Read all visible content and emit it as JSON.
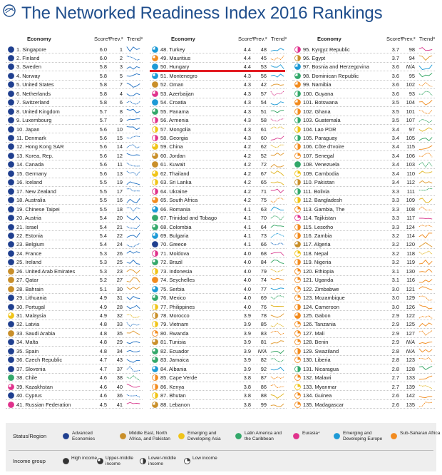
{
  "title": "The Networked Readiness Index 2016 Rankings",
  "colors": {
    "title": "#1f4e8c",
    "highlight_line": "#e31d23",
    "regions": {
      "adv": "#1f3f8f",
      "mena": "#c98f2a",
      "asia": "#f0c419",
      "lac": "#33a86a",
      "eur": "#e0328c",
      "europe": "#1d9ad6",
      "ssa": "#f28b1f"
    },
    "trend": {
      "adv": "#1f6fc2",
      "mena": "#e0972a",
      "asia": "#e0b21a",
      "lac": "#2fa35f",
      "eur": "#d83a8d",
      "europe": "#1d9ad6",
      "ssa": "#f08a1c"
    }
  },
  "headers": {
    "economy": "Economy",
    "score": "Score¹",
    "prev": "Prev.²",
    "trend": "Trend³"
  },
  "highlight_rank": 50,
  "columns": [
    [
      [
        "1. Singapore",
        "6.0",
        "1",
        "adv",
        "H"
      ],
      [
        "2. Finland",
        "6.0",
        "2",
        "adv",
        "H"
      ],
      [
        "3. Sweden",
        "5.8",
        "3",
        "adv",
        "H"
      ],
      [
        "4. Norway",
        "5.8",
        "5",
        "adv",
        "H"
      ],
      [
        "5. United States",
        "5.8",
        "7",
        "adv",
        "H"
      ],
      [
        "6. Netherlands",
        "5.8",
        "4",
        "adv",
        "H"
      ],
      [
        "7. Switzerland",
        "5.8",
        "6",
        "adv",
        "H"
      ],
      [
        "8. United Kingdom",
        "5.7",
        "8",
        "adv",
        "H"
      ],
      [
        "9. Luxembourg",
        "5.7",
        "9",
        "adv",
        "H"
      ],
      [
        "10. Japan",
        "5.6",
        "10",
        "adv",
        "H"
      ],
      [
        "11. Denmark",
        "5.6",
        "15",
        "adv",
        "H"
      ],
      [
        "12. Hong Kong SAR",
        "5.6",
        "14",
        "adv",
        "H"
      ],
      [
        "13. Korea, Rep.",
        "5.6",
        "12",
        "adv",
        "H"
      ],
      [
        "14. Canada",
        "5.6",
        "11",
        "adv",
        "H"
      ],
      [
        "15. Germany",
        "5.6",
        "13",
        "adv",
        "H"
      ],
      [
        "16. Iceland",
        "5.5",
        "19",
        "adv",
        "H"
      ],
      [
        "17. New Zealand",
        "5.5",
        "17",
        "adv",
        "H"
      ],
      [
        "18. Australia",
        "5.5",
        "16",
        "adv",
        "H"
      ],
      [
        "19. Chinese Taipei",
        "5.5",
        "18",
        "adv",
        "H"
      ],
      [
        "20. Austria",
        "5.4",
        "20",
        "adv",
        "H"
      ],
      [
        "21. Israel",
        "5.4",
        "21",
        "adv",
        "H"
      ],
      [
        "22. Estonia",
        "5.4",
        "22",
        "adv",
        "H"
      ],
      [
        "23. Belgium",
        "5.4",
        "24",
        "adv",
        "H"
      ],
      [
        "24. France",
        "5.3",
        "26",
        "adv",
        "H"
      ],
      [
        "25. Ireland",
        "5.3",
        "25",
        "adv",
        "H"
      ],
      [
        "26. United Arab Emirates",
        "5.3",
        "23",
        "mena",
        "H"
      ],
      [
        "27. Qatar",
        "5.2",
        "27",
        "mena",
        "H"
      ],
      [
        "28. Bahrain",
        "5.1",
        "30",
        "mena",
        "H"
      ],
      [
        "29. Lithuania",
        "4.9",
        "31",
        "adv",
        "H"
      ],
      [
        "30. Portugal",
        "4.9",
        "28",
        "adv",
        "H"
      ],
      [
        "31. Malaysia",
        "4.9",
        "32",
        "asia",
        "UM"
      ],
      [
        "32. Latvia",
        "4.8",
        "33",
        "adv",
        "H"
      ],
      [
        "33. Saudi Arabia",
        "4.8",
        "35",
        "mena",
        "H"
      ],
      [
        "34. Malta",
        "4.8",
        "29",
        "adv",
        "H"
      ],
      [
        "35. Spain",
        "4.8",
        "34",
        "adv",
        "H"
      ],
      [
        "36. Czech Republic",
        "4.7",
        "43",
        "adv",
        "H"
      ],
      [
        "37. Slovenia",
        "4.7",
        "37",
        "adv",
        "H"
      ],
      [
        "38. Chile",
        "4.6",
        "38",
        "lac",
        "H"
      ],
      [
        "39. Kazakhstan",
        "4.6",
        "40",
        "eur",
        "UM"
      ],
      [
        "40. Cyprus",
        "4.6",
        "36",
        "adv",
        "H"
      ],
      [
        "41. Russian Federation",
        "4.5",
        "41",
        "eur",
        "H"
      ]
    ],
    [
      [
        "48. Turkey",
        "4.4",
        "48",
        "europe",
        "UM"
      ],
      [
        "49. Mauritius",
        "4.4",
        "45",
        "ssa",
        "UM"
      ],
      [
        "50. Hungary",
        "4.4",
        "53",
        "europe",
        "H"
      ],
      [
        "51. Montenegro",
        "4.3",
        "56",
        "europe",
        "UM"
      ],
      [
        "52. Oman",
        "4.3",
        "42",
        "mena",
        "H"
      ],
      [
        "53. Azerbaijan",
        "4.3",
        "57",
        "eur",
        "UM"
      ],
      [
        "54. Croatia",
        "4.3",
        "54",
        "europe",
        "H"
      ],
      [
        "55. Panama",
        "4.3",
        "51",
        "lac",
        "UM"
      ],
      [
        "56. Armenia",
        "4.3",
        "58",
        "eur",
        "LM"
      ],
      [
        "57. Mongolia",
        "4.3",
        "61",
        "asia",
        "LM"
      ],
      [
        "58. Georgia",
        "4.3",
        "60",
        "eur",
        "LM"
      ],
      [
        "59. China",
        "4.2",
        "62",
        "asia",
        "UM"
      ],
      [
        "60. Jordan",
        "4.2",
        "52",
        "mena",
        "UM"
      ],
      [
        "61. Kuwait",
        "4.2",
        "72",
        "mena",
        "H"
      ],
      [
        "62. Thailand",
        "4.2",
        "67",
        "asia",
        "UM"
      ],
      [
        "63. Sri Lanka",
        "4.2",
        "65",
        "asia",
        "LM"
      ],
      [
        "64. Ukraine",
        "4.2",
        "71",
        "eur",
        "LM"
      ],
      [
        "65. South Africa",
        "4.2",
        "75",
        "ssa",
        "UM"
      ],
      [
        "66. Romania",
        "4.1",
        "63",
        "europe",
        "UM"
      ],
      [
        "67. Trinidad and Tobago",
        "4.1",
        "70",
        "lac",
        "H"
      ],
      [
        "68. Colombia",
        "4.1",
        "64",
        "lac",
        "UM"
      ],
      [
        "69. Bulgaria",
        "4.1",
        "73",
        "europe",
        "UM"
      ],
      [
        "70. Greece",
        "4.1",
        "66",
        "adv",
        "H"
      ],
      [
        "71. Moldova",
        "4.0",
        "68",
        "eur",
        "LM"
      ],
      [
        "72. Brazil",
        "4.0",
        "84",
        "lac",
        "UM"
      ],
      [
        "73. Indonesia",
        "4.0",
        "79",
        "asia",
        "LM"
      ],
      [
        "74. Seychelles",
        "4.0",
        "74",
        "ssa",
        "H"
      ],
      [
        "75. Serbia",
        "4.0",
        "77",
        "europe",
        "UM"
      ],
      [
        "76. Mexico",
        "4.0",
        "69",
        "lac",
        "UM"
      ],
      [
        "77. Philippines",
        "4.0",
        "76",
        "asia",
        "LM"
      ],
      [
        "78. Morocco",
        "3.9",
        "78",
        "mena",
        "LM"
      ],
      [
        "79. Vietnam",
        "3.9",
        "85",
        "asia",
        "LM"
      ],
      [
        "80. Rwanda",
        "3.9",
        "83",
        "ssa",
        "L"
      ],
      [
        "81. Tunisia",
        "3.9",
        "81",
        "mena",
        "UM"
      ],
      [
        "82. Ecuador",
        "3.9",
        "N/A",
        "lac",
        "UM"
      ],
      [
        "83. Jamaica",
        "3.9",
        "82",
        "lac",
        "UM"
      ],
      [
        "84. Albania",
        "3.9",
        "92",
        "europe",
        "UM"
      ],
      [
        "85. Cape Verde",
        "3.8",
        "87",
        "ssa",
        "LM"
      ],
      [
        "86. Kenya",
        "3.8",
        "86",
        "ssa",
        "LM"
      ],
      [
        "87. Bhutan",
        "3.8",
        "88",
        "asia",
        "LM"
      ],
      [
        "88. Lebanon",
        "3.8",
        "99",
        "mena",
        "UM"
      ]
    ],
    [
      [
        "95. Kyrgyz Republic",
        "3.7",
        "98",
        "eur",
        "LM"
      ],
      [
        "96. Egypt",
        "3.7",
        "94",
        "mena",
        "LM"
      ],
      [
        "97. Bosnia and Herzegovina",
        "3.6",
        "N/A",
        "europe",
        "UM"
      ],
      [
        "98. Dominican Republic",
        "3.6",
        "95",
        "lac",
        "UM"
      ],
      [
        "99. Namibia",
        "3.6",
        "102",
        "ssa",
        "UM"
      ],
      [
        "100. Guyana",
        "3.6",
        "93",
        "lac",
        "LM"
      ],
      [
        "101. Botswana",
        "3.5",
        "104",
        "ssa",
        "UM"
      ],
      [
        "102. Ghana",
        "3.5",
        "101",
        "ssa",
        "LM"
      ],
      [
        "103. Guatemala",
        "3.5",
        "107",
        "lac",
        "LM"
      ],
      [
        "104. Lao PDR",
        "3.4",
        "97",
        "asia",
        "LM"
      ],
      [
        "105. Paraguay",
        "3.4",
        "105",
        "lac",
        "LM"
      ],
      [
        "106. Côte d'Ivoire",
        "3.4",
        "115",
        "ssa",
        "LM"
      ],
      [
        "107. Senegal",
        "3.4",
        "106",
        "ssa",
        "L"
      ],
      [
        "108. Venezuela",
        "3.4",
        "103",
        "lac",
        "H"
      ],
      [
        "109. Cambodia",
        "3.4",
        "110",
        "asia",
        "L"
      ],
      [
        "110. Pakistan",
        "3.4",
        "112",
        "mena",
        "LM"
      ],
      [
        "111. Bolivia",
        "3.3",
        "111",
        "lac",
        "LM"
      ],
      [
        "112. Bangladesh",
        "3.3",
        "109",
        "asia",
        "LM"
      ],
      [
        "113. Gambia, The",
        "3.3",
        "108",
        "ssa",
        "L"
      ],
      [
        "114. Tajikistan",
        "3.3",
        "117",
        "eur",
        "L"
      ],
      [
        "115. Lesotho",
        "3.3",
        "124",
        "ssa",
        "LM"
      ],
      [
        "116. Zambia",
        "3.2",
        "114",
        "ssa",
        "LM"
      ],
      [
        "117. Algeria",
        "3.2",
        "120",
        "mena",
        "UM"
      ],
      [
        "118. Nepal",
        "3.2",
        "118",
        "asia",
        "L"
      ],
      [
        "119. Nigeria",
        "3.2",
        "119",
        "ssa",
        "LM"
      ],
      [
        "120. Ethiopia",
        "3.1",
        "130",
        "ssa",
        "L"
      ],
      [
        "121. Uganda",
        "3.1",
        "116",
        "ssa",
        "L"
      ],
      [
        "122. Zimbabwe",
        "3.0",
        "121",
        "ssa",
        "L"
      ],
      [
        "123. Mozambique",
        "3.0",
        "129",
        "ssa",
        "L"
      ],
      [
        "124. Cameroon",
        "3.0",
        "126",
        "ssa",
        "LM"
      ],
      [
        "125. Gabon",
        "2.9",
        "122",
        "ssa",
        "UM"
      ],
      [
        "126. Tanzania",
        "2.9",
        "125",
        "ssa",
        "L"
      ],
      [
        "127. Mali",
        "2.9",
        "127",
        "ssa",
        "L"
      ],
      [
        "128. Benin",
        "2.9",
        "N/A",
        "ssa",
        "L"
      ],
      [
        "129. Swaziland",
        "2.8",
        "N/A",
        "ssa",
        "LM"
      ],
      [
        "130. Liberia",
        "2.8",
        "123",
        "ssa",
        "L"
      ],
      [
        "131. Nicaragua",
        "2.8",
        "128",
        "lac",
        "LM"
      ],
      [
        "132. Malawi",
        "2.7",
        "133",
        "ssa",
        "L"
      ],
      [
        "133. Myanmar",
        "2.7",
        "139",
        "asia",
        "L"
      ],
      [
        "134. Guinea",
        "2.6",
        "142",
        "ssa",
        "L"
      ],
      [
        "135. Madagascar",
        "2.6",
        "135",
        "ssa",
        "L"
      ]
    ]
  ],
  "legend": {
    "status_label": "Status/Region",
    "regions": [
      {
        "key": "adv",
        "label": "Advanced Economies"
      },
      {
        "key": "mena",
        "label": "Middle East, North Africa, and Pakistan"
      },
      {
        "key": "asia",
        "label": "Emerging and Developing Asia"
      },
      {
        "key": "lac",
        "label": "Latin America and the Caribbean"
      },
      {
        "key": "eur",
        "label": "Eurasia⁴"
      },
      {
        "key": "europe",
        "label": "Emerging and Developing Europe"
      },
      {
        "key": "ssa",
        "label": "Sub-Saharan Africa"
      }
    ],
    "income_label": "Income group",
    "income": [
      {
        "key": "H",
        "label": "High income"
      },
      {
        "key": "UM",
        "label": "Upper-middle income"
      },
      {
        "key": "LM",
        "label": "Lower-middle income"
      },
      {
        "key": "L",
        "label": "Low income"
      }
    ]
  },
  "chart_data": {
    "type": "table",
    "title": "The Networked Readiness Index 2016 Rankings",
    "columns": [
      "Economy",
      "Score¹",
      "Prev.²",
      "Trend³"
    ],
    "note": "Rows are stored in columns[] above as [rank+economy, score, previous rank, region, income group]"
  }
}
